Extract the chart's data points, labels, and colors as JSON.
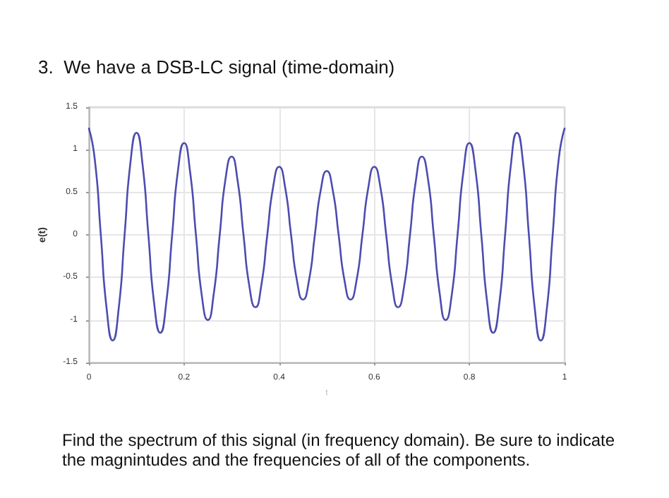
{
  "chart_data": {
    "type": "line",
    "title": "3.  We have a DSB-LC signal (time-domain)",
    "xlabel": "t",
    "ylabel": "e(t)",
    "annotations": [
      "Find the spectrum of this signal (in frequency domain).  Be sure to indicate the magnintudes and the frequencies of all of the components."
    ],
    "x": [
      0,
      0.0125,
      0.025,
      0.0375,
      0.05,
      0.0625,
      0.075,
      0.0875,
      0.1,
      0.1125,
      0.125,
      0.1375,
      0.15,
      0.1625,
      0.175,
      0.1875,
      0.2,
      0.2125,
      0.225,
      0.2375,
      0.25,
      0.2625,
      0.275,
      0.2875,
      0.3,
      0.3125,
      0.325,
      0.3375,
      0.35,
      0.3625,
      0.375,
      0.3875,
      0.4,
      0.4125,
      0.425,
      0.4375,
      0.45,
      0.4625,
      0.475,
      0.4875,
      0.5,
      0.5125,
      0.525,
      0.5375,
      0.55,
      0.5625,
      0.575,
      0.5875,
      0.6,
      0.6125,
      0.625,
      0.6375,
      0.65,
      0.6625,
      0.675,
      0.6875,
      0.7,
      0.7125,
      0.725,
      0.7375,
      0.75,
      0.7625,
      0.775,
      0.7875,
      0.8,
      0.8125,
      0.825,
      0.8375,
      0.85,
      0.8625,
      0.875,
      0.8875,
      0.9,
      0.9125,
      0.925,
      0.9375,
      0.95,
      0.9625,
      0.975,
      0.9875,
      1
    ],
    "series": [
      {
        "color": "#4c4cb0",
        "values": [
          1.25,
          0.88,
          0,
          -0.88,
          -1.24,
          -0.87,
          0,
          0.86,
          1.2,
          0.84,
          0,
          -0.82,
          -1.15,
          -0.8,
          0,
          0.77,
          1.08,
          0.75,
          0,
          -0.72,
          -1.0,
          -0.69,
          0,
          0.67,
          0.92,
          0.64,
          0,
          -0.61,
          -0.85,
          -0.59,
          0,
          0.57,
          0.8,
          0.56,
          0,
          -0.54,
          -0.76,
          -0.54,
          0,
          0.53,
          0.75,
          0.53,
          0,
          -0.54,
          -0.76,
          -0.54,
          0,
          0.56,
          0.8,
          0.57,
          0,
          -0.59,
          -0.85,
          -0.61,
          0,
          0.64,
          0.92,
          0.67,
          0,
          -0.69,
          -1.0,
          -0.72,
          0,
          0.75,
          1.08,
          0.77,
          0,
          -0.8,
          -1.15,
          -0.82,
          0,
          0.84,
          1.2,
          0.86,
          0,
          -0.87,
          -1.24,
          -0.88,
          0,
          0.88,
          1.25
        ]
      }
    ],
    "xlim": [
      0,
      1
    ],
    "xticks": [
      0,
      0.2,
      0.4,
      0.6,
      0.8,
      1
    ],
    "ylim": [
      -1.5,
      1.5
    ],
    "yticks": [
      -1.5,
      -1,
      -0.5,
      0,
      0.5,
      1,
      1.5
    ],
    "grid": true,
    "marker": "none",
    "line_style": "solid"
  }
}
